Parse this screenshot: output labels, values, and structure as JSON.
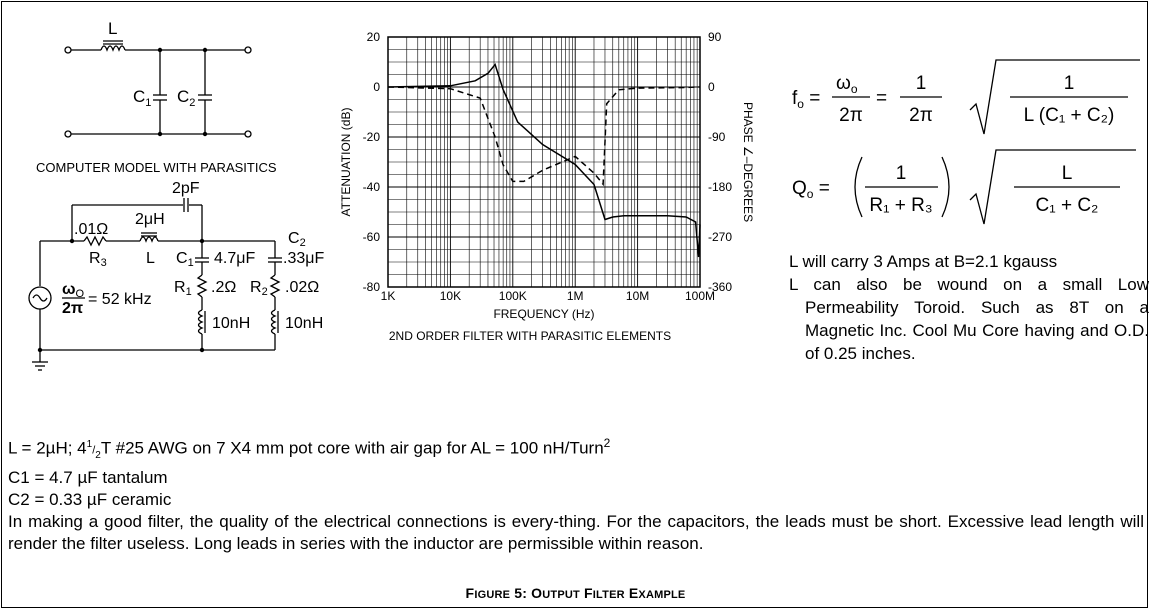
{
  "circuit_ideal": {
    "L": "L",
    "C1": "C",
    "C1_sub": "1",
    "C2": "C",
    "C2_sub": "2",
    "model_title": "COMPUTER MODEL WITH PARASITICS"
  },
  "circuit_model": {
    "cap_2pF": "2pF",
    "r3_value": ".01Ω",
    "r3_label": "R",
    "r3_sub": "3",
    "l_value": "2μH",
    "l_label": "L",
    "c1_label": "C",
    "c1_sub": "1",
    "c1_value": "4.7μF",
    "c2_label": "C",
    "c2_sub": "2",
    "c2_value": ".33μF",
    "r1_label": "R",
    "r1_sub": "1",
    "r1_value": ".2Ω",
    "r2_label": "R",
    "r2_sub": "2",
    "r2_value": ".02Ω",
    "l1_esl": "10nH",
    "l2_esl": "10nH",
    "omega": "ω",
    "omega_sub": "O",
    "two_pi": "2π",
    "freq": "= 52 kHz"
  },
  "chart_data": {
    "type": "line",
    "title": "2ND ORDER FILTER WITH PARASITIC ELEMENTS",
    "xlabel": "FREQUENCY (Hz)",
    "ylabel": "ATTENUATION (dB)",
    "y2label": "PHASE ∠–DEGREES",
    "x_scale": "log",
    "xlim": [
      1000,
      100000000
    ],
    "ylim": [
      -80,
      20
    ],
    "y2lim": [
      -360,
      90
    ],
    "x_ticks": [
      "1K",
      "10K",
      "100K",
      "1M",
      "10M",
      "100M"
    ],
    "y_ticks": [
      "20",
      "0",
      "-20",
      "-40",
      "-60",
      "-80"
    ],
    "y2_ticks": [
      "90",
      "0",
      "-90",
      "-180",
      "-270",
      "-360"
    ],
    "grid": true,
    "series": [
      {
        "style": "solid",
        "x": [
          1000,
          10000,
          25000,
          40000,
          52000,
          70000,
          120000,
          300000,
          1000000,
          2000000,
          3000000,
          4000000,
          6000000,
          10000000,
          30000000,
          60000000,
          85000000,
          95000000,
          100000000
        ],
        "y": [
          0,
          0.5,
          2.5,
          5.5,
          9,
          -1,
          -14,
          -23,
          -31,
          -39,
          -53,
          -52,
          -51.5,
          -51.5,
          -51.5,
          -52,
          -54,
          -68,
          -55
        ]
      },
      {
        "style": "dashed",
        "x": [
          1000,
          10000,
          30000,
          52000,
          70000,
          100000,
          150000,
          300000,
          1000000,
          2000000,
          2800000,
          3200000,
          5000000,
          10000000,
          50000000,
          100000000
        ],
        "y": [
          0,
          -3,
          -20,
          -90,
          -140,
          -170,
          -170,
          -150,
          -125,
          -155,
          -175,
          -30,
          -5,
          -2,
          -1,
          0
        ]
      }
    ]
  },
  "formulas": {
    "f": "f",
    "f_sub": "o",
    "omega": "ω",
    "omega_sub": "o",
    "two_pi": "2π",
    "one": "1",
    "f_denominator": "L (C₁ + C₂)",
    "q": "Q",
    "q_sub": "o",
    "q_denominator": "R₁ + R₃",
    "q_numerator2": "L",
    "q_denominator2": "C₁ + C₂"
  },
  "notes_right": {
    "line1": "L will carry 3 Amps at B=2.1 kgauss",
    "line2": "L can also be wound on a small Low Permeability Toroid. Such as 8T on a Magnetic Inc. Cool Mu Core having and O.D. of 0.25 inches."
  },
  "notes": {
    "l_line_a": "L = 2µH; 4",
    "l_line_sup": "1",
    "l_line_sub": "2",
    "l_line_b": "T #25 AWG on 7 X4 mm pot core with air gap for AL = 100 nH/Turn",
    "l_line_exp": "2",
    "c1": "C1 = 4.7 µF tantalum",
    "c2": "C2 = 0.33 µF ceramic",
    "para": "In making a good filter, the quality of the electrical connections is every-thing. For the capacitors, the leads must be short. Excessive lead length will render the filter useless. Long leads in series with the inductor are permissible within reason."
  },
  "caption": {
    "a": "F",
    "b": "IGURE",
    "c": " 5: O",
    "d": "UTPUT",
    "e": " F",
    "f": "ILTER",
    "g": " E",
    "h": "XAMPLE"
  }
}
